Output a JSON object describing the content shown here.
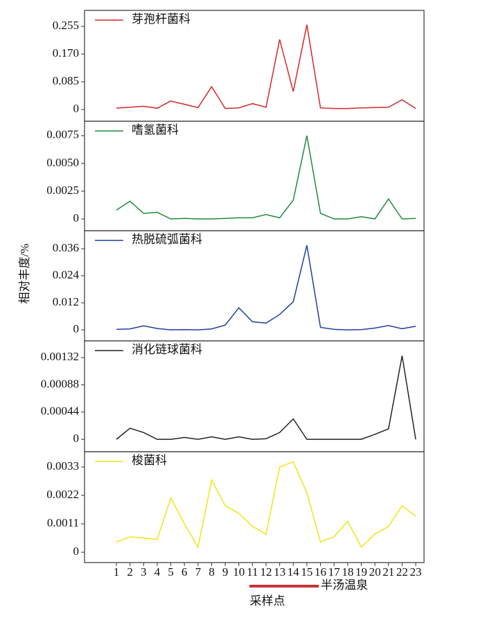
{
  "chart_data": [
    {
      "type": "line",
      "x": [
        1,
        2,
        3,
        4,
        5,
        6,
        7,
        8,
        9,
        10,
        11,
        12,
        13,
        14,
        15,
        16,
        17,
        18,
        19,
        20,
        21,
        22,
        23
      ],
      "series": [
        {
          "name": "芽孢杆菌科",
          "color": "#d62728",
          "values": [
            0.004,
            0.007,
            0.01,
            0.004,
            0.026,
            0.016,
            0.006,
            0.07,
            0.003,
            0.005,
            0.018,
            0.007,
            0.215,
            0.055,
            0.26,
            0.005,
            0.003,
            0.003,
            0.005,
            0.006,
            0.007,
            0.03,
            0.003
          ]
        }
      ],
      "ylim": [
        -0.036,
        0.304
      ],
      "yticks": [
        0,
        0.085,
        {
          "value": 0.17,
          "label": "0.170"
        },
        0.255
      ]
    },
    {
      "type": "line",
      "x": [
        1,
        2,
        3,
        4,
        5,
        6,
        7,
        8,
        9,
        10,
        11,
        12,
        13,
        14,
        15,
        16,
        17,
        18,
        19,
        20,
        21,
        22,
        23
      ],
      "series": [
        {
          "name": "嗜氢菌科",
          "color": "#1f8a3a",
          "values": [
            0.0008,
            0.0016,
            0.0005,
            0.0006,
            0,
            5e-05,
            0,
            0,
            5e-05,
            0.0001,
            0.0001,
            0.0004,
            0.0001,
            0.0017,
            0.0075,
            0.0005,
            0,
            0,
            0.0002,
            0,
            0.0018,
            0,
            5e-05
          ]
        }
      ],
      "ylim": [
        -0.00106,
        0.0088
      ],
      "yticks": [
        0,
        0.0025,
        {
          "value": 0.005,
          "label": "0.0050"
        },
        0.0075
      ]
    },
    {
      "type": "line",
      "x": [
        1,
        2,
        3,
        4,
        5,
        6,
        7,
        8,
        9,
        10,
        11,
        12,
        13,
        14,
        15,
        16,
        17,
        18,
        19,
        20,
        21,
        22,
        23
      ],
      "ylabel": "相对丰度/%",
      "series": [
        {
          "name": "热脱硫弧菌科",
          "color": "#1f3fa0",
          "values": [
            0.0002,
            0.0004,
            0.0018,
            0.0006,
            0,
            0.0001,
            0,
            0.0004,
            0.0021,
            0.0098,
            0.0036,
            0.003,
            0.0068,
            0.0125,
            0.0375,
            0.0011,
            0.0002,
            0,
            0.0001,
            0.0008,
            0.0019,
            0.0005,
            0.0016
          ]
        }
      ],
      "ylim": [
        -0.0049,
        0.044
      ],
      "yticks": [
        0,
        0.012,
        0.024,
        0.036
      ]
    },
    {
      "type": "line",
      "x": [
        1,
        2,
        3,
        4,
        5,
        6,
        7,
        8,
        9,
        10,
        11,
        12,
        13,
        14,
        15,
        16,
        17,
        18,
        19,
        20,
        21,
        22,
        23
      ],
      "series": [
        {
          "name": "消化链球菌科",
          "color": "#222222",
          "values": [
            0,
            0.00018,
            0.00011,
            0,
            0,
            3e-05,
            0,
            4e-05,
            0,
            4e-05,
            0,
            1e-05,
            0.00011,
            0.00033,
            0,
            0,
            0,
            0,
            0,
            8e-05,
            0.00017,
            0.00135,
            0
          ]
        }
      ],
      "ylim": [
        -0.0002,
        0.00159
      ],
      "yticks": [
        0,
        0.00044,
        0.00088,
        0.00132
      ]
    },
    {
      "type": "line",
      "x": [
        1,
        2,
        3,
        4,
        5,
        6,
        7,
        8,
        9,
        10,
        11,
        12,
        13,
        14,
        15,
        16,
        17,
        18,
        19,
        20,
        21,
        22,
        23
      ],
      "xlabel": "采样点",
      "annotation": "半汤温泉",
      "annotation_color": "#c8323a",
      "xticks": [
        1,
        2,
        3,
        4,
        5,
        6,
        7,
        8,
        9,
        10,
        11,
        12,
        13,
        14,
        15,
        16,
        17,
        18,
        19,
        20,
        21,
        22,
        23
      ],
      "series": [
        {
          "name": "梭菌科",
          "color": "#f2e318",
          "values": [
            0.0004,
            0.0006,
            0.00055,
            0.0005,
            0.0021,
            0.0011,
            0.0002,
            0.0028,
            0.0018,
            0.0015,
            0.001,
            0.0007,
            0.0033,
            0.0035,
            0.0023,
            0.0004,
            0.0006,
            0.0012,
            0.0002,
            0.0007,
            0.001,
            0.0018,
            0.0014
          ]
        }
      ],
      "ylim": [
        -0.0004,
        0.00389
      ],
      "yticks": [
        0,
        0.0011,
        0.0022,
        0.0033
      ]
    }
  ]
}
